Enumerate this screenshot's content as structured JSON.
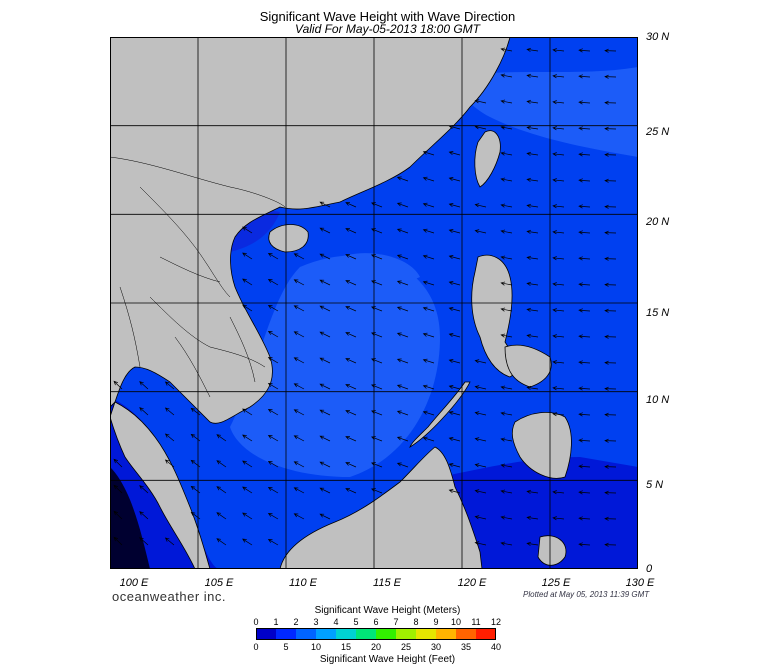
{
  "header": {
    "title": "Significant Wave Height with Wave Direction",
    "subtitle": "Valid For May-05-2013 18:00 GMT"
  },
  "axes": {
    "lat_labels": [
      "30 N",
      "25 N",
      "20 N",
      "15 N",
      "10 N",
      "5 N",
      "0"
    ],
    "lon_labels": [
      "100 E",
      "105 E",
      "110 E",
      "115 E",
      "120 E",
      "125 E",
      "130 E"
    ],
    "lat_range": [
      0,
      30
    ],
    "lon_range": [
      100,
      130
    ]
  },
  "footer": {
    "brand": "oceanweather inc.",
    "plotted": "Plotted at May 05, 2013 11:39 GMT"
  },
  "colorbar": {
    "title_top": "Significant Wave Height (Meters)",
    "title_bottom": "Significant Wave Height (Feet)",
    "meters_ticks": [
      "0",
      "1",
      "2",
      "3",
      "4",
      "5",
      "6",
      "7",
      "8",
      "9",
      "10",
      "11",
      "12"
    ],
    "feet_ticks": [
      "0",
      "5",
      "10",
      "15",
      "20",
      "25",
      "30",
      "35",
      "40"
    ],
    "colors": [
      "#0000c8",
      "#0028ff",
      "#0064ff",
      "#00a0ff",
      "#00d2d2",
      "#00e678",
      "#32f000",
      "#a0f000",
      "#e6e600",
      "#ffb400",
      "#ff6400",
      "#ff1e00"
    ]
  },
  "map_colors": {
    "land": "#c0c0c0",
    "sea_deep": "#0018d8",
    "sea_mid": "#0040f0",
    "sea_light": "#1c5cf8",
    "gridline": "#000000"
  }
}
